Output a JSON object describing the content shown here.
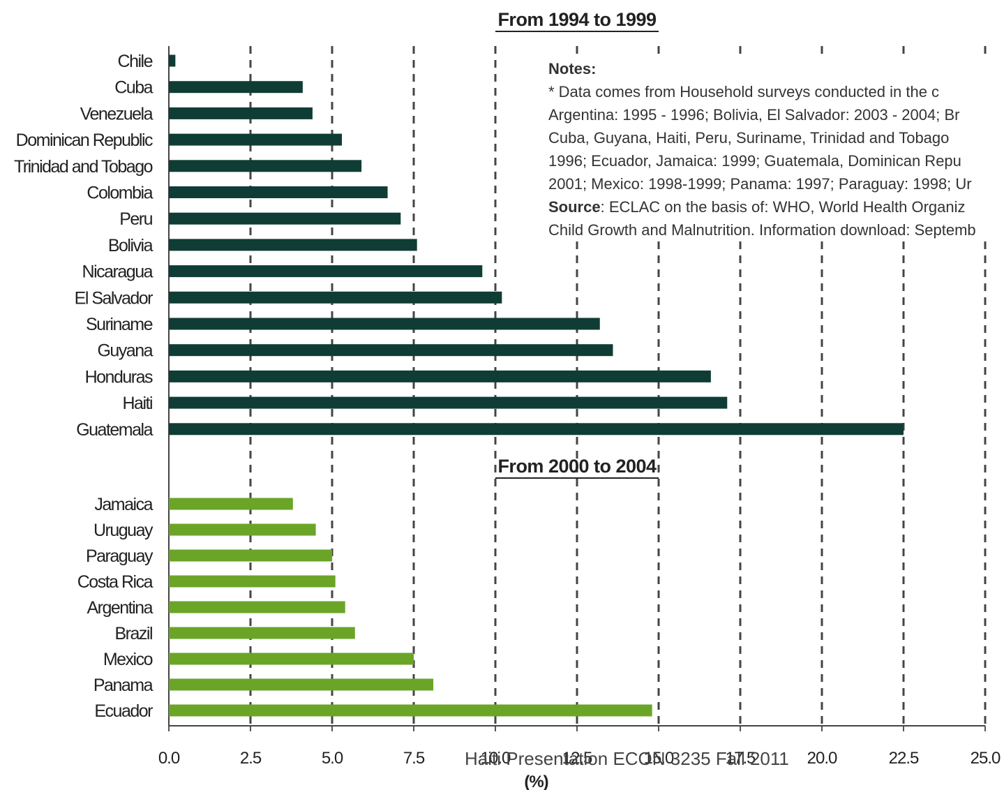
{
  "chart_data": {
    "type": "bar",
    "orientation": "horizontal",
    "x_unit_label": "(%)",
    "xlim": [
      0,
      25
    ],
    "x_ticks": [
      "0.0",
      "2.5",
      "5.0",
      "7.5",
      "10.0",
      "12.5",
      "15.0",
      "17.5",
      "20.0",
      "22.5",
      "25.0"
    ],
    "grid": "vertical dashed",
    "groups": [
      {
        "title": "From 1994 to 1999",
        "color": "#0f3d35",
        "categories": [
          "Chile",
          "Cuba",
          "Venezuela",
          "Dominican Republic",
          "Trinidad and Tobago",
          "Colombia",
          "Peru",
          "Bolivia",
          "Nicaragua",
          "El Salvador",
          "Suriname",
          "Guyana",
          "Honduras",
          "Haiti",
          "Guatemala"
        ],
        "values": [
          0.2,
          4.1,
          4.4,
          5.3,
          5.9,
          6.7,
          7.1,
          7.6,
          9.6,
          10.2,
          13.2,
          13.6,
          16.6,
          17.1,
          22.5
        ]
      },
      {
        "title": "From 2000 to 2004",
        "color": "#6aa527",
        "categories": [
          "Jamaica",
          "Uruguay",
          "Paraguay",
          "Costa Rica",
          "Argentina",
          "Brazil",
          "Mexico",
          "Panama",
          "Ecuador"
        ],
        "values": [
          3.8,
          4.5,
          5.0,
          5.1,
          5.4,
          5.7,
          7.5,
          8.1,
          14.8
        ]
      }
    ]
  },
  "notes": {
    "heading": "Notes:",
    "lines": [
      "* Data comes from Household surveys conducted in the c",
      "Argentina: 1995 - 1996; Bolivia, El Salvador: 2003 - 2004; Br",
      "Cuba, Guyana, Haiti, Peru, Suriname, Trinidad and Tobago",
      "1996; Ecuador, Jamaica: 1999; Guatemala, Dominican Repu",
      "2001; Mexico: 1998-1999; Panama: 1997; Paraguay: 1998; Ur"
    ],
    "source_label": "Source",
    "source_lines": [
      ": ECLAC on the basis of: WHO, World Health Organiz",
      "Child Growth and Malnutrition. Information download: Septemb"
    ]
  },
  "footer": "Haiti Presentation ECON 3235 Fall 2011"
}
